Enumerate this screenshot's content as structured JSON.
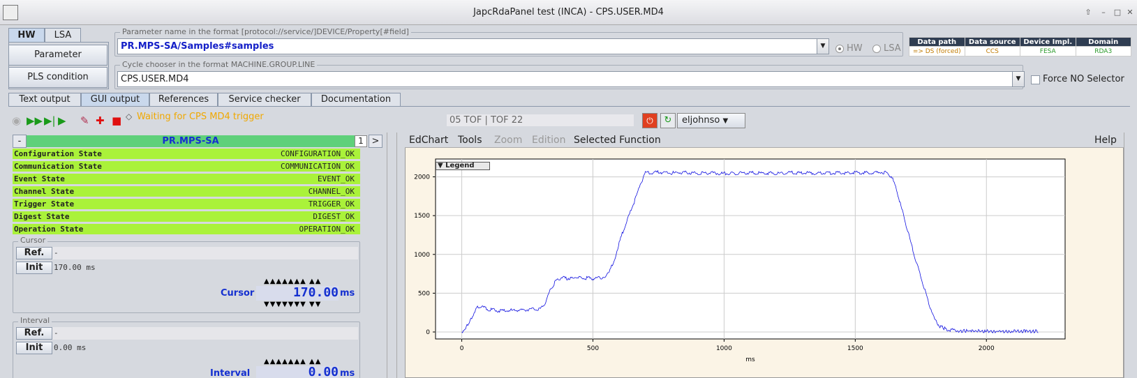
{
  "window": {
    "title": "JapcRdaPanel test (INCA)  - CPS.USER.MD4"
  },
  "mode_tabs": [
    {
      "label": "HW",
      "active": true
    },
    {
      "label": "LSA",
      "active": false
    }
  ],
  "buttons": {
    "parameter": "Parameter",
    "pls_condition": "PLS condition"
  },
  "parameter_field": {
    "legend": "Parameter name in the format [protocol://service/]DEVICE/Property[#field]",
    "value": "PR.MPS-SA/Samples#samples"
  },
  "cycle_field": {
    "legend": "Cycle chooser in the format MACHINE.GROUP.LINE",
    "value": "CPS.USER.MD4"
  },
  "radios": {
    "hw": "HW",
    "lsa": "LSA"
  },
  "info_table": {
    "headers": [
      "Data path",
      "Data source",
      "Device Impl.",
      "Domain"
    ],
    "values": [
      "=> DS (forced)",
      "CCS",
      "FESA",
      "RDA3"
    ],
    "colors": [
      "#c07a00",
      "#c07a00",
      "#2a9a2a",
      "#2a9a2a"
    ]
  },
  "force_selector": "Force NO Selector",
  "output_tabs": [
    {
      "label": "Text output",
      "active": false
    },
    {
      "label": "GUI output",
      "active": true
    },
    {
      "label": "References",
      "active": false
    },
    {
      "label": "Service checker",
      "active": false
    },
    {
      "label": "Documentation",
      "active": false
    }
  ],
  "toolbar": {
    "status": "Waiting for CPS MD4 trigger",
    "tof": "05 TOF | TOF  22",
    "user": "eljohnso"
  },
  "device_panel": {
    "collapse": "-",
    "name": "PR.MPS-SA",
    "page": "1",
    "next": ">",
    "states": [
      {
        "label": "Configuration State",
        "value": "CONFIGURATION_OK"
      },
      {
        "label": "Communication State",
        "value": "COMMUNICATION_OK"
      },
      {
        "label": "Event State",
        "value": "EVENT_OK"
      },
      {
        "label": "Channel State",
        "value": "CHANNEL_OK"
      },
      {
        "label": "Trigger State",
        "value": "TRIGGER_OK"
      },
      {
        "label": "Digest State",
        "value": "DIGEST_OK"
      },
      {
        "label": "Operation State",
        "value": "OPERATION_OK"
      }
    ],
    "cursor": {
      "legend": "Cursor",
      "ref_label": "Ref.",
      "ref_value": "-",
      "init_label": "Init",
      "init_value": "170.00 ms",
      "name": "Cursor",
      "value": "170.00",
      "unit": "ms"
    },
    "interval": {
      "legend": "Interval",
      "ref_label": "Ref.",
      "ref_value": "-",
      "init_label": "Init",
      "init_value": "0.00 ms",
      "name": "Interval",
      "value": "0.00",
      "unit": "ms"
    },
    "arrows_up": "▲▲▲▲▲▲▲  ▲▲",
    "arrows_down": "▼▼▼▼▼▼▼  ▼▼"
  },
  "chart_menu": {
    "items": [
      "EdChart",
      "Tools",
      "Zoom",
      "Edition",
      "Selected Function"
    ],
    "help": "Help",
    "legend_btn": "Legend"
  },
  "chart_data": {
    "type": "line",
    "xlabel": "ms",
    "ylabel": "",
    "xlim": [
      -100,
      2300
    ],
    "ylim": [
      -90,
      2230
    ],
    "xticks": [
      0,
      500,
      1000,
      1500,
      2000
    ],
    "yticks": [
      0,
      500,
      1000,
      1500,
      2000
    ],
    "grid": true,
    "series": [
      {
        "color": "#1010e0",
        "x": [
          0,
          20,
          50,
          60,
          80,
          100,
          150,
          200,
          250,
          300,
          320,
          340,
          360,
          380,
          400,
          420,
          450,
          500,
          550,
          580,
          600,
          620,
          640,
          660,
          680,
          700,
          750,
          800,
          850,
          900,
          950,
          1000,
          1050,
          1100,
          1150,
          1200,
          1250,
          1300,
          1350,
          1400,
          1450,
          1500,
          1550,
          1600,
          1620,
          1640,
          1660,
          1680,
          1700,
          1720,
          1740,
          1760,
          1780,
          1800,
          1820,
          1850,
          1900,
          2000,
          2100,
          2200
        ],
        "y": [
          0,
          80,
          250,
          330,
          320,
          290,
          270,
          280,
          290,
          300,
          380,
          560,
          660,
          700,
          690,
          700,
          700,
          690,
          710,
          900,
          1150,
          1350,
          1520,
          1700,
          1900,
          2050,
          2060,
          2050,
          2055,
          2045,
          2050,
          2040,
          2045,
          2050,
          2050,
          2045,
          2055,
          2050,
          2045,
          2050,
          2050,
          2055,
          2050,
          2060,
          2050,
          2000,
          1800,
          1550,
          1300,
          1050,
          820,
          600,
          380,
          180,
          80,
          30,
          15,
          10,
          8,
          10
        ]
      }
    ]
  }
}
